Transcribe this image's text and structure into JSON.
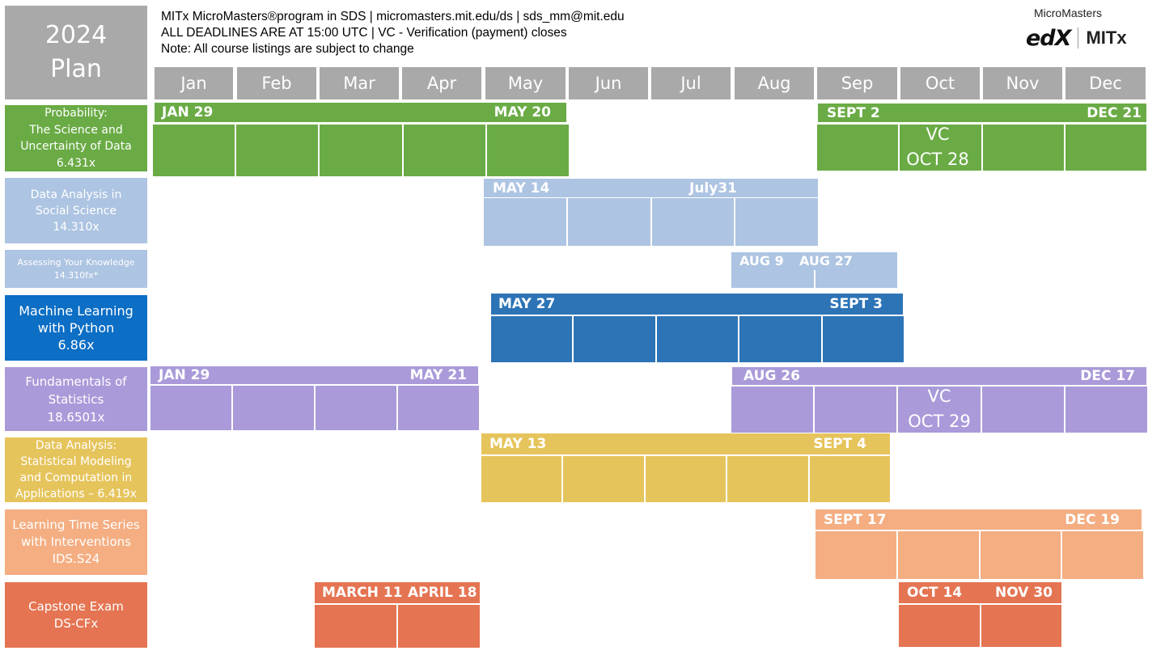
{
  "plan_title": [
    "2024",
    "Plan"
  ],
  "header_lines": [
    "MITx MicroMasters®program in SDS | micromasters.mit.edu/ds | sds_mm@mit.edu",
    "ALL DEADLINES ARE AT 15:00 UTC | VC - Verification (payment) closes",
    "Note: All course listings are subject to change"
  ],
  "logo": {
    "micromasters": "MicroMasters",
    "edx": "edX",
    "mitx": "MITx"
  },
  "months": [
    "Jan",
    "Feb",
    "Mar",
    "Apr",
    "May",
    "Jun",
    "Jul",
    "Aug",
    "Sep",
    "Oct",
    "Nov",
    "Dec"
  ],
  "colors": {
    "probability": "#6aab45",
    "data_analysis_social": "#adc4e2",
    "assessing": "#adc4e2",
    "machine_learning": "#2d74b6",
    "machine_learning_label": "#0c6ec5",
    "fundamentals": "#aa9ad9",
    "data_analysis_stat": "#e6c45c",
    "time_series": "#f4ae82",
    "capstone": "#e57452",
    "month_header": "#a9a9a9"
  },
  "courses": [
    {
      "label_lines": [
        "Probability:",
        "The Science and",
        "Uncertainty of Data",
        "6.431x"
      ],
      "sessions": [
        {
          "start_label": "JAN 29",
          "end_label": "MAY  20"
        },
        {
          "start_label": "SEPT 2",
          "end_label": "DEC 21",
          "vc": [
            "VC",
            "OCT 28"
          ]
        }
      ]
    },
    {
      "label_lines": [
        "Data Analysis in",
        "Social Science",
        "14.310x"
      ],
      "sessions": [
        {
          "start_label": "MAY 14",
          "end_label": "July31"
        }
      ]
    },
    {
      "label_lines": [
        "Assessing Your Knowledge",
        "14.310fx*"
      ],
      "sessions": [
        {
          "start_label": "AUG 9",
          "end_label": "AUG  27"
        }
      ]
    },
    {
      "label_lines": [
        "Machine Learning",
        "with Python",
        "6.86x"
      ],
      "sessions": [
        {
          "start_label": "MAY 27",
          "end_label": "SEPT 3"
        }
      ]
    },
    {
      "label_lines": [
        "Fundamentals of",
        "Statistics",
        "18.6501x"
      ],
      "sessions": [
        {
          "start_label": "JAN 29",
          "end_label": "MAY 21"
        },
        {
          "start_label": "AUG 26",
          "end_label": "DEC 17",
          "vc": [
            "VC",
            "OCT 29"
          ]
        }
      ]
    },
    {
      "label_lines": [
        "Data Analysis:",
        "Statistical Modeling",
        "and Computation in",
        "Applications – 6.419x"
      ],
      "sessions": [
        {
          "start_label": "MAY 13",
          "end_label": "SEPT 4"
        }
      ]
    },
    {
      "label_lines": [
        "Learning Time Series",
        "with Interventions",
        "IDS.S24"
      ],
      "sessions": [
        {
          "start_label": "SEPT 17",
          "end_label": "DEC   19"
        }
      ]
    },
    {
      "label_lines": [
        "Capstone Exam",
        "DS-CFx"
      ],
      "sessions": [
        {
          "start_label": "MARCH 11",
          "end_label": "APRIL 18"
        },
        {
          "start_label": "OCT 14",
          "end_label": "NOV 30"
        }
      ]
    }
  ]
}
